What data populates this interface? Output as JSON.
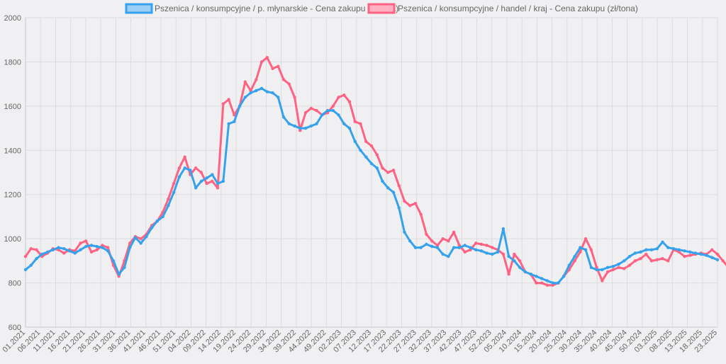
{
  "chart_data": {
    "type": "line",
    "ylim": [
      600,
      2000
    ],
    "y_ticks": [
      600,
      800,
      1000,
      1200,
      1400,
      1600,
      1800,
      2000
    ],
    "x_tick_labels": [
      "01.2021",
      "06.2021",
      "11.2021",
      "16.2021",
      "21.2021",
      "26.2021",
      "31.2021",
      "36.2021",
      "41.2021",
      "46.2021",
      "51.2021",
      "04.2022",
      "09.2022",
      "14.2022",
      "19.2022",
      "24.2022",
      "29.2022",
      "34.2022",
      "39.2022",
      "44.2022",
      "49.2022",
      "02.2023",
      "07.2023",
      "12.2023",
      "17.2023",
      "22.2023",
      "27.2023",
      "32.2023",
      "37.2023",
      "42.2023",
      "47.2023",
      "52.2023",
      "05.2024",
      "10.2024",
      "15.2024",
      "20.2024",
      "25.2024",
      "30.2024",
      "35.2024",
      "40.2024",
      "45.2024",
      "50.2024",
      "03.2025",
      "08.2025",
      "13.2025",
      "18.2025",
      "23.2025"
    ],
    "grid": true,
    "legend_position": "top",
    "series": [
      {
        "name": "Pszenica / konsumpcyjne / p. młynarskie - Cena zakupu (zł/tona)",
        "color": "#36a2eb",
        "fill": "#9ad0f5",
        "values": [
          860,
          880,
          910,
          930,
          940,
          950,
          960,
          955,
          945,
          935,
          950,
          965,
          970,
          965,
          960,
          945,
          900,
          840,
          870,
          960,
          1005,
          980,
          1010,
          1050,
          1080,
          1100,
          1150,
          1210,
          1280,
          1320,
          1310,
          1230,
          1260,
          1275,
          1290,
          1250,
          1260,
          1520,
          1530,
          1600,
          1640,
          1660,
          1670,
          1680,
          1665,
          1660,
          1640,
          1550,
          1520,
          1510,
          1500,
          1500,
          1510,
          1520,
          1560,
          1580,
          1580,
          1560,
          1520,
          1500,
          1440,
          1400,
          1370,
          1340,
          1320,
          1260,
          1230,
          1210,
          1140,
          1030,
          990,
          960,
          960,
          975,
          965,
          960,
          930,
          920,
          960,
          960,
          970,
          960,
          950,
          945,
          935,
          930,
          940,
          1045,
          920,
          900,
          870,
          850,
          840,
          830,
          820,
          810,
          800,
          800,
          830,
          880,
          920,
          960,
          950,
          870,
          860,
          860,
          870,
          875,
          885,
          900,
          920,
          935,
          940,
          950,
          950,
          955,
          985,
          960,
          955,
          950,
          945,
          940,
          935,
          930,
          925,
          915,
          905
        ]
      },
      {
        "name": "Pszenica / konsumpcyjne / handel / kraj - Cena zakupu (zł/tona)",
        "color": "#ff6384",
        "fill": "#ffb1c1",
        "values": [
          920,
          955,
          950,
          920,
          935,
          955,
          950,
          935,
          950,
          945,
          980,
          990,
          940,
          950,
          970,
          960,
          880,
          830,
          900,
          980,
          1010,
          1000,
          1020,
          1060,
          1080,
          1120,
          1180,
          1250,
          1320,
          1370,
          1290,
          1320,
          1300,
          1250,
          1260,
          1230,
          1610,
          1630,
          1560,
          1600,
          1710,
          1670,
          1720,
          1800,
          1820,
          1770,
          1780,
          1720,
          1700,
          1640,
          1490,
          1570,
          1590,
          1580,
          1560,
          1570,
          1600,
          1640,
          1650,
          1620,
          1530,
          1520,
          1440,
          1420,
          1380,
          1320,
          1300,
          1310,
          1240,
          1170,
          1150,
          1160,
          1110,
          1020,
          990,
          970,
          1000,
          990,
          1030,
          970,
          940,
          950,
          980,
          975,
          970,
          960,
          950,
          930,
          840,
          930,
          900,
          850,
          840,
          800,
          800,
          790,
          790,
          800,
          830,
          860,
          900,
          940,
          1000,
          950,
          870,
          810,
          850,
          860,
          870,
          865,
          880,
          900,
          910,
          930,
          900,
          905,
          910,
          900,
          950,
          940,
          920,
          925,
          930,
          935,
          930,
          950,
          930,
          900,
          870
        ]
      }
    ]
  }
}
